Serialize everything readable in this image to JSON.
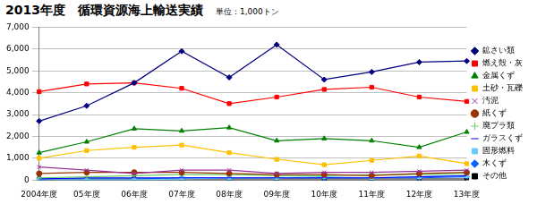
{
  "chart_data": {
    "type": "line",
    "title": "2013年度　循環資源海上輸送実績",
    "subtitle": "単位：1,000トン",
    "categories": [
      "2004年度",
      "05年度",
      "06年度",
      "07年度",
      "08年度",
      "09年度",
      "10年度",
      "11年度",
      "12年度",
      "13年度"
    ],
    "series": [
      {
        "name": "鉱さい類",
        "color": "#000080",
        "marker": "diamond",
        "values": [
          2700,
          3400,
          4450,
          5900,
          4700,
          6200,
          4600,
          4950,
          5400,
          5450
        ]
      },
      {
        "name": "燃え殻・灰",
        "color": "#ff0000",
        "marker": "square",
        "values": [
          4050,
          4400,
          4450,
          4200,
          3500,
          3800,
          4150,
          4250,
          3800,
          3600
        ]
      },
      {
        "name": "金属くず",
        "color": "#008000",
        "marker": "triangle",
        "values": [
          1250,
          1750,
          2350,
          2250,
          2400,
          1800,
          1900,
          1800,
          1500,
          2200
        ]
      },
      {
        "name": "土砂・瓦礫",
        "color": "#ffc000",
        "marker": "square",
        "values": [
          1000,
          1350,
          1500,
          1600,
          1250,
          950,
          700,
          900,
          1100,
          750
        ]
      },
      {
        "name": "汚泥",
        "color": "#993399",
        "marker": "x",
        "values": [
          600,
          450,
          300,
          450,
          450,
          300,
          350,
          350,
          400,
          450
        ]
      },
      {
        "name": "紙くず",
        "color": "#993300",
        "marker": "circle",
        "values": [
          300,
          350,
          350,
          350,
          300,
          250,
          250,
          200,
          300,
          350
        ]
      },
      {
        "name": "廃プラ類",
        "color": "#66cc66",
        "marker": "plus",
        "values": [
          100,
          150,
          200,
          250,
          250,
          200,
          200,
          250,
          250,
          300
        ]
      },
      {
        "name": "ガラスくず",
        "color": "#0000ff",
        "marker": "line",
        "values": [
          50,
          100,
          100,
          100,
          100,
          100,
          100,
          100,
          150,
          200
        ]
      },
      {
        "name": "固形燃料",
        "color": "#66ccff",
        "marker": "square",
        "values": [
          0,
          0,
          0,
          50,
          100,
          100,
          150,
          100,
          150,
          200
        ]
      },
      {
        "name": "木くず",
        "color": "#0066ff",
        "marker": "diamond",
        "values": [
          50,
          50,
          50,
          100,
          100,
          100,
          100,
          100,
          100,
          150
        ]
      },
      {
        "name": "その他",
        "color": "#000000",
        "marker": "square",
        "values": [
          50,
          50,
          50,
          50,
          50,
          50,
          50,
          50,
          50,
          50
        ]
      }
    ],
    "ylim": [
      0,
      7000
    ],
    "yticks": [
      0,
      {
        "value": 1000,
        "label": "1,000"
      },
      {
        "value": 2000,
        "label": "2,000"
      },
      {
        "value": 3000,
        "label": "3,000"
      },
      {
        "value": 4000,
        "label": "4,000"
      },
      {
        "value": 5000,
        "label": "5,000"
      },
      {
        "value": 6000,
        "label": "6,000"
      },
      {
        "value": 7000,
        "label": "7,000"
      }
    ],
    "grid": true,
    "legend": "right"
  }
}
